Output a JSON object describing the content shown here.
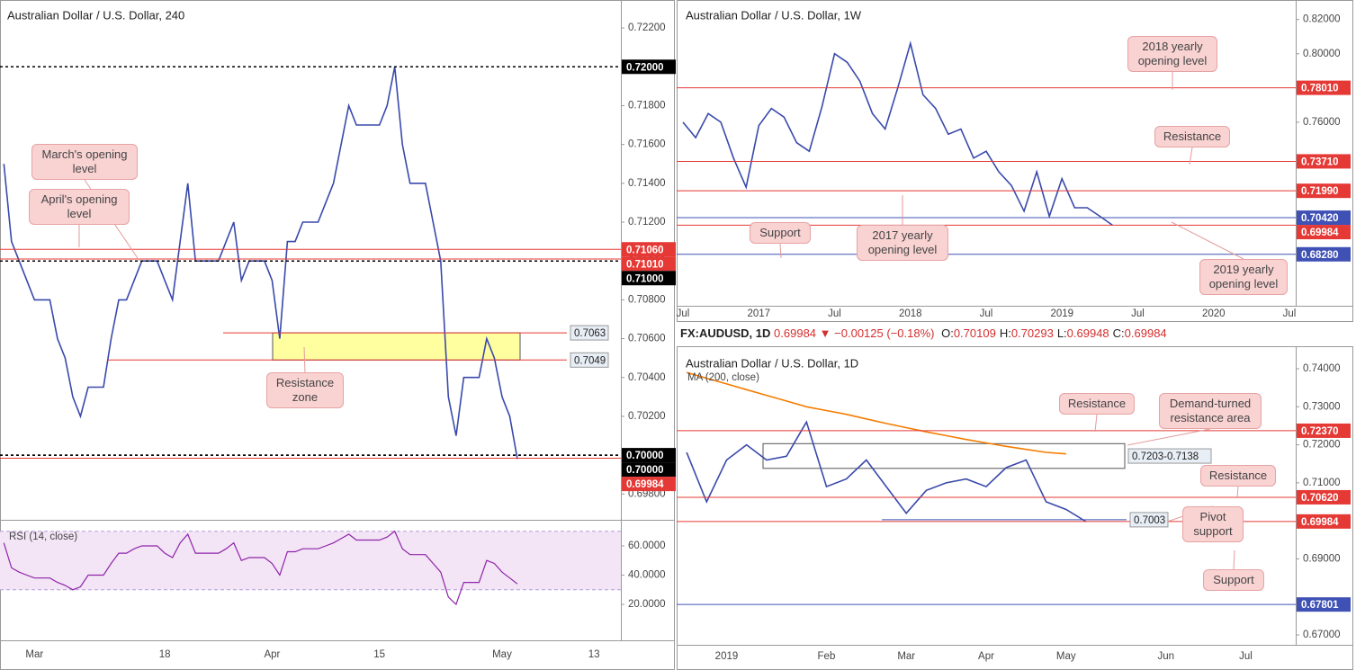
{
  "info_bar": {
    "symbol": "FX:AUDUSD, 1D",
    "last": "0.69984",
    "arrow": "▼",
    "change": "−0.00125 (−0.18%)",
    "ohlc": [
      {
        "label": "O:",
        "value": "0.70109"
      },
      {
        "label": "H:",
        "value": "0.70293"
      },
      {
        "label": "L:",
        "value": "0.69948"
      },
      {
        "label": "C:",
        "value": "0.69984"
      }
    ]
  },
  "chart_data": [
    {
      "type": "line",
      "title": "Australian Dollar / U.S. Dollar, 240",
      "categories": [
        null,
        null,
        null,
        null,
        "Mar",
        null,
        null,
        null,
        null,
        null,
        null,
        null,
        null,
        null,
        null,
        null,
        null,
        null,
        null,
        null,
        null,
        "18",
        null,
        null,
        null,
        null,
        null,
        null,
        null,
        null,
        null,
        null,
        null,
        null,
        null,
        "Apr",
        null,
        null,
        null,
        null,
        null,
        null,
        null,
        null,
        null,
        null,
        null,
        null,
        null,
        "15",
        null,
        null,
        null,
        null,
        null,
        null,
        null,
        null,
        null,
        null,
        null,
        null,
        null,
        null,
        null,
        "May",
        null,
        null,
        null,
        null,
        null,
        null,
        null,
        null,
        null,
        null,
        null,
        "13",
        null,
        null,
        null
      ],
      "series": [
        {
          "color": "#3949ab",
          "values": [
            0.715,
            0.711,
            0.71,
            0.709,
            0.708,
            0.708,
            0.708,
            0.706,
            0.705,
            0.703,
            0.702,
            0.7035,
            0.7035,
            0.7035,
            0.706,
            0.708,
            0.708,
            0.709,
            0.71,
            0.71,
            0.71,
            0.709,
            0.708,
            0.711,
            0.714,
            0.71,
            0.71,
            0.71,
            0.71,
            0.711,
            0.712,
            0.709,
            0.71,
            0.71,
            0.71,
            0.709,
            0.706,
            0.711,
            0.711,
            0.712,
            0.712,
            0.712,
            0.713,
            0.714,
            0.716,
            0.718,
            0.717,
            0.717,
            0.717,
            0.717,
            0.718,
            0.72,
            0.716,
            0.714,
            0.714,
            0.714,
            0.712,
            0.71,
            0.703,
            0.701,
            0.704,
            0.704,
            0.704,
            0.706,
            0.705,
            0.703,
            0.702,
            0.6998,
            null,
            null,
            null,
            null,
            null,
            null,
            null,
            null,
            null,
            null,
            null,
            null,
            null
          ]
        }
      ],
      "ylim": [
        0.69667,
        0.72344
      ],
      "yticks": [
        {
          "value": 0.698,
          "label": "0.69800"
        },
        {
          "value": 0.7,
          "label": "0.70000"
        },
        {
          "value": 0.702,
          "label": "0.70200"
        },
        {
          "value": 0.704,
          "label": "0.70400"
        },
        {
          "value": 0.706,
          "label": "0.70600"
        },
        {
          "value": 0.708,
          "label": "0.70800"
        },
        {
          "value": 0.71,
          "label": "0.71000"
        },
        {
          "value": 0.712,
          "label": "0.71200"
        },
        {
          "value": 0.714,
          "label": "0.71400"
        },
        {
          "value": 0.716,
          "label": "0.71600"
        },
        {
          "value": 0.718,
          "label": "0.71800"
        },
        {
          "value": 0.72,
          "label": "0.72000"
        },
        {
          "value": 0.722,
          "label": "0.72200"
        }
      ],
      "zones": [
        {
          "from": 0.7049,
          "to": 0.7063,
          "color": "#ffff88"
        }
      ],
      "levels": [
        {
          "value": 0.72,
          "label": "0.72000",
          "color": "#000000",
          "dashed": true
        },
        {
          "value": 0.7106,
          "label": "0.71060",
          "color": "#e53935"
        },
        {
          "value": 0.7101,
          "label": "0.71010",
          "color": "#e53935"
        },
        {
          "value": 0.71,
          "label": "0.71000",
          "color": "#000000",
          "dashed": true
        },
        {
          "value": 0.7,
          "label": "0.70000",
          "color": "#000000",
          "dashed": true
        },
        {
          "value": 0.7,
          "label": "0.70000",
          "color": "#000000",
          "dashed": true
        },
        {
          "value": 0.69984,
          "label": "0.69984",
          "color": "#e53935"
        },
        {
          "value": 0.7063,
          "label": "0.7063",
          "color": "#e53935",
          "tag": true
        },
        {
          "value": 0.7049,
          "label": "0.7049",
          "color": "#e53935",
          "tag": true
        }
      ],
      "annotations": [
        "March's opening level",
        "April's opening level",
        "Resistance zone"
      ],
      "indicator": {
        "series": [
          {
            "name": "RSI (14, close)",
            "color": "#8e24aa",
            "values": [
              62,
              45,
              42,
              40,
              38,
              38,
              38,
              35,
              33,
              30,
              32,
              40,
              40,
              40,
              48,
              55,
              55,
              58,
              60,
              60,
              60,
              55,
              52,
              62,
              68,
              55,
              55,
              55,
              55,
              58,
              62,
              50,
              52,
              52,
              52,
              48,
              40,
              56,
              56,
              58,
              58,
              58,
              60,
              62,
              65,
              68,
              64,
              64,
              64,
              64,
              66,
              70,
              58,
              54,
              54,
              54,
              48,
              42,
              25,
              20,
              35,
              35,
              35,
              50,
              48,
              42,
              38,
              34,
              null,
              null,
              null,
              null,
              null,
              null,
              null,
              null,
              null,
              null,
              null,
              null,
              null
            ]
          }
        ],
        "ylim": [
          -4.6,
          76.6
        ],
        "band": [
          30,
          70
        ],
        "band_color": "#f3e5f5",
        "yticks": [
          {
            "value": 20,
            "label": "20.0000"
          },
          {
            "value": 40,
            "label": "40.0000"
          },
          {
            "value": 60,
            "label": "60.0000"
          }
        ]
      }
    },
    {
      "type": "line",
      "title": "Australian Dollar / U.S. Dollar, 1W",
      "categories": [
        "Jul",
        null,
        null,
        null,
        null,
        null,
        "2017",
        null,
        null,
        null,
        null,
        null,
        "Jul",
        null,
        null,
        null,
        null,
        null,
        "2018",
        null,
        null,
        null,
        null,
        null,
        "Jul",
        null,
        null,
        null,
        null,
        null,
        "2019",
        null,
        null,
        null,
        null,
        null,
        "Jul",
        null,
        null,
        null,
        null,
        null,
        "2020",
        null,
        null,
        null,
        null,
        null,
        "Jul"
      ],
      "series": [
        {
          "color": "#3949ab",
          "values": [
            0.76,
            0.751,
            0.765,
            0.76,
            0.739,
            0.722,
            0.758,
            0.768,
            0.763,
            0.748,
            0.743,
            0.769,
            0.8,
            0.795,
            0.784,
            0.765,
            0.756,
            0.78,
            0.806,
            0.776,
            0.768,
            0.753,
            0.756,
            0.739,
            0.743,
            0.731,
            0.723,
            0.708,
            0.731,
            0.705,
            0.727,
            0.71,
            0.71,
            0.705,
            0.6998,
            null,
            null,
            null,
            null,
            null,
            null,
            null,
            null,
            null,
            null,
            null,
            null,
            null,
            null
          ]
        }
      ],
      "ylim": [
        0.65273,
        0.83139
      ],
      "yticks": [
        {
          "value": 0.76,
          "label": "0.76000"
        },
        {
          "value": 0.8,
          "label": "0.80000"
        },
        {
          "value": 0.82,
          "label": "0.82000"
        }
      ],
      "levels": [
        {
          "value": 0.7801,
          "label": "0.78010",
          "color": "#e53935"
        },
        {
          "value": 0.7371,
          "label": "0.73710",
          "color": "#e53935"
        },
        {
          "value": 0.7199,
          "label": "0.71990",
          "color": "#e53935"
        },
        {
          "value": 0.7042,
          "label": "0.70420",
          "color": "#3f51b5"
        },
        {
          "value": 0.69984,
          "label": "0.69984",
          "color": "#e53935"
        },
        {
          "value": 0.6828,
          "label": "0.68280",
          "color": "#3f51b5"
        }
      ],
      "annotations": [
        "2018 yearly opening level",
        "Resistance",
        "2017 yearly opening level",
        "Support",
        "2019 yearly opening level"
      ]
    },
    {
      "type": "line",
      "title": "Australian Dollar / U.S. Dollar, 1D",
      "categories": [
        null,
        null,
        "2019",
        null,
        null,
        null,
        null,
        "Feb",
        null,
        null,
        null,
        "Mar",
        null,
        null,
        null,
        "Apr",
        null,
        null,
        null,
        "May",
        null,
        null,
        null,
        null,
        "Jun",
        null,
        null,
        null,
        "Jul",
        null,
        null
      ],
      "series": [
        {
          "color": "#3949ab",
          "values": [
            0.718,
            0.705,
            0.716,
            0.72,
            0.716,
            0.717,
            0.726,
            0.709,
            0.711,
            0.716,
            0.709,
            0.702,
            0.708,
            0.71,
            0.711,
            0.709,
            0.714,
            0.716,
            0.705,
            0.703,
            0.6998,
            null,
            null,
            null,
            null,
            null,
            null,
            null,
            null,
            null,
            null
          ]
        },
        {
          "name": "MA (200, close)",
          "color": "#f57c00",
          "values": [
            0.739,
            0.7375,
            0.736,
            0.7345,
            0.733,
            0.7315,
            0.73,
            0.729,
            0.728,
            0.7268,
            0.7256,
            0.7245,
            0.7234,
            0.7224,
            0.7214,
            0.7205,
            0.7196,
            0.7188,
            0.718,
            0.7176,
            null,
            null,
            null,
            null,
            null,
            null,
            null,
            null,
            null,
            null,
            null
          ]
        }
      ],
      "ylim": [
        0.66741,
        0.74591
      ],
      "yticks": [
        {
          "value": 0.67,
          "label": "0.67000"
        },
        {
          "value": 0.69,
          "label": "0.69000"
        },
        {
          "value": 0.71,
          "label": "0.71000"
        },
        {
          "value": 0.72,
          "label": "0.72000"
        },
        {
          "value": 0.73,
          "label": "0.73000"
        },
        {
          "value": 0.74,
          "label": "0.74000"
        }
      ],
      "zones": [
        {
          "from": 0.7138,
          "to": 0.7203,
          "color": "#ffffff",
          "label": "0.7203-0.7138"
        }
      ],
      "levels": [
        {
          "value": 0.7237,
          "label": "0.72370",
          "color": "#e53935"
        },
        {
          "value": 0.7062,
          "label": "0.70620",
          "color": "#e53935"
        },
        {
          "value": 0.69984,
          "label": "0.69984",
          "color": "#e53935"
        },
        {
          "value": 0.67801,
          "label": "0.67801",
          "color": "#3f51b5"
        },
        {
          "value": 0.7003,
          "label": "0.7003",
          "color": "#3f51b5",
          "tag": true
        }
      ],
      "annotations": [
        "Resistance",
        "Demand-turned resistance area",
        "Resistance",
        "Pivot support",
        "Support"
      ]
    }
  ]
}
